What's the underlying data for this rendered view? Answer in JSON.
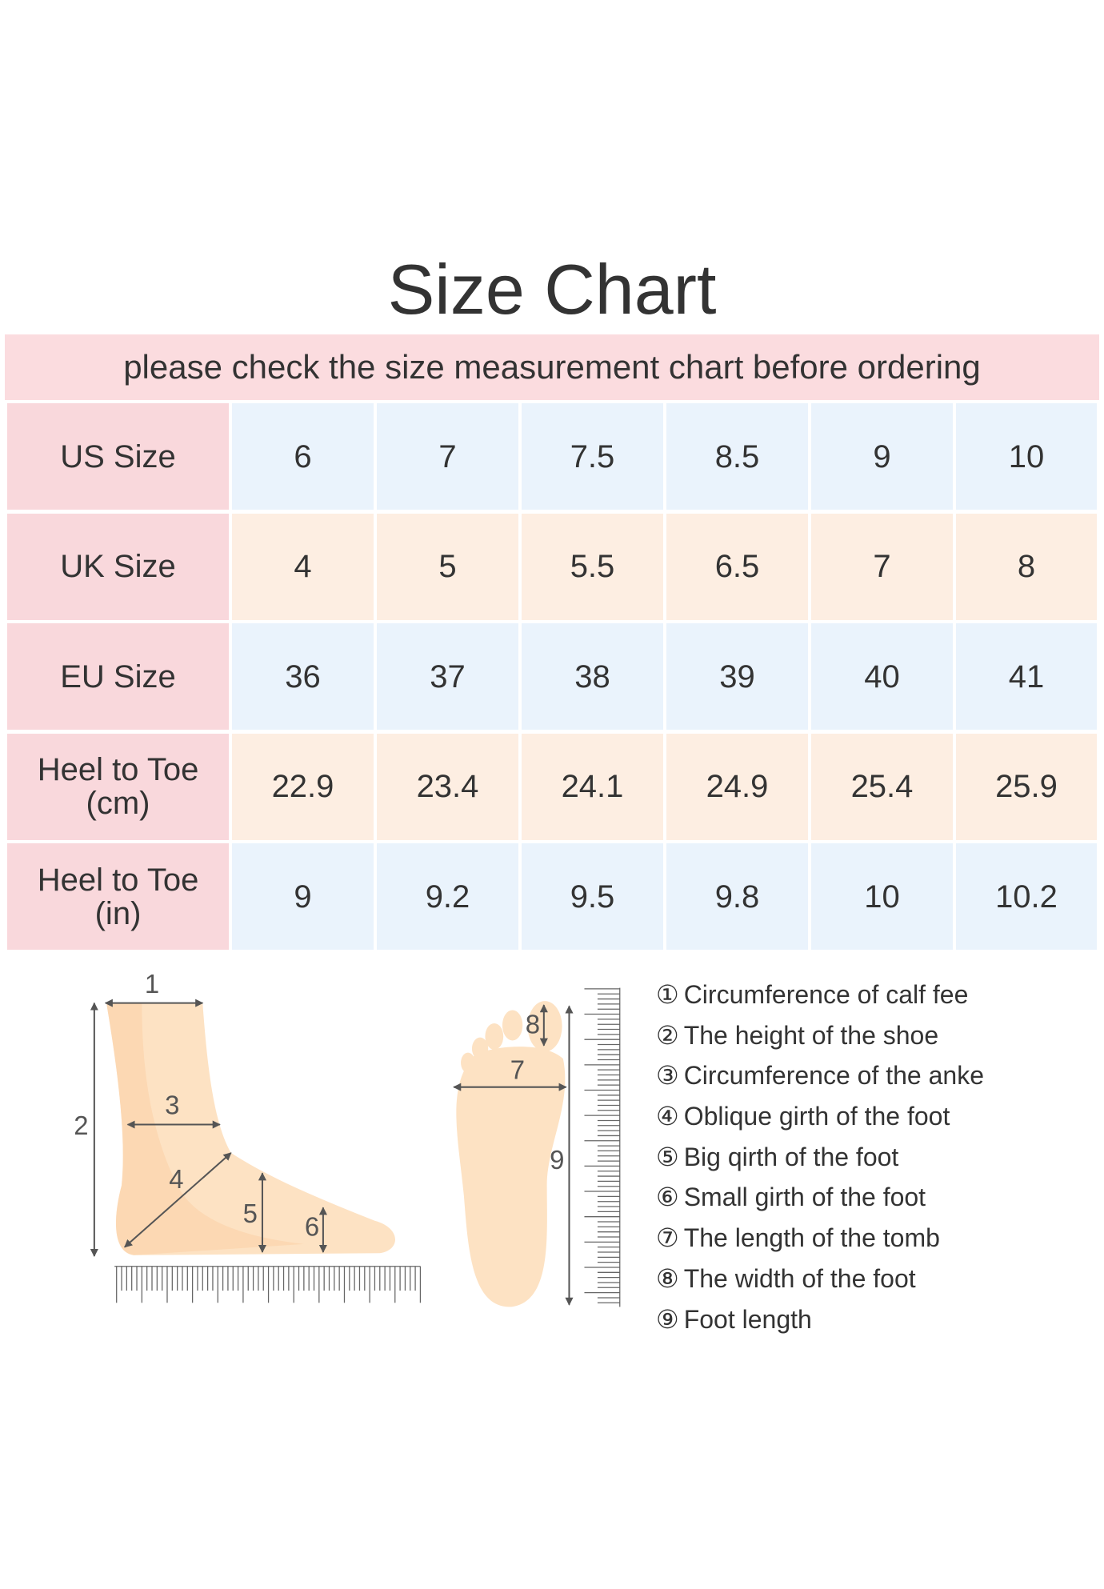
{
  "title": "Size Chart",
  "subtitle": "please check the size measurement chart before ordering",
  "table": {
    "rows": [
      [
        "US Size",
        "6",
        "7",
        "7.5",
        "8.5",
        "9",
        "10"
      ],
      [
        "UK Size",
        "4",
        "5",
        "5.5",
        "6.5",
        "7",
        "8"
      ],
      [
        "EU Size",
        "36",
        "37",
        "38",
        "39",
        "40",
        "41"
      ],
      [
        "Heel to Toe (cm)",
        "22.9",
        "23.4",
        "24.1",
        "24.9",
        "25.4",
        "25.9"
      ],
      [
        "Heel to Toe (in)",
        "9",
        "9.2",
        "9.5",
        "9.8",
        "10",
        "10.2"
      ]
    ]
  },
  "diagram": {
    "side_labels": [
      "1",
      "2",
      "3",
      "4",
      "5",
      "6"
    ],
    "sole_labels": [
      "7",
      "8",
      "9"
    ]
  },
  "legend": [
    {
      "marker": "①",
      "text": "Circumference of calf fee"
    },
    {
      "marker": "②",
      "text": "The height of the shoe"
    },
    {
      "marker": "③",
      "text": "Circumference of the anke"
    },
    {
      "marker": "④",
      "text": "Oblique girth of the foot"
    },
    {
      "marker": "⑤",
      "text": "Big qirth of the foot"
    },
    {
      "marker": "⑥",
      "text": "Small girth of the foot"
    },
    {
      "marker": "⑦",
      "text": "The length of the tomb"
    },
    {
      "marker": "⑧",
      "text": "The width of the foot"
    },
    {
      "marker": "⑨",
      "text": "Foot length"
    }
  ]
}
